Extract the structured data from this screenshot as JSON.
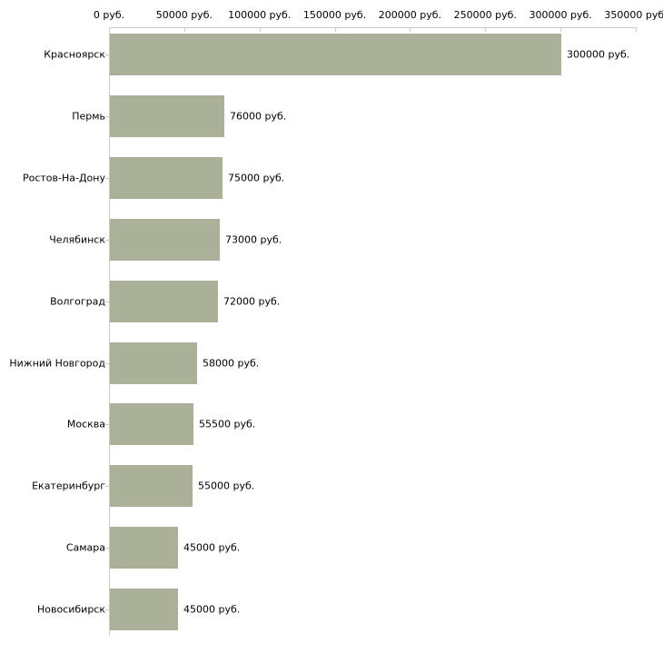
{
  "chart_data": {
    "type": "bar",
    "orientation": "horizontal",
    "title": "",
    "xlabel": "",
    "ylabel": "",
    "grid": false,
    "legend": false,
    "background": "#ffffff",
    "bar_color": "#abb198",
    "axis_color": "#c9cdbe",
    "text_color": "#000000",
    "categories": [
      "Красноярск",
      "Пермь",
      "Ростов-На-Дону",
      "Челябинск",
      "Волгоград",
      "Нижний Новгород",
      "Москва",
      "Екатеринбург",
      "Самара",
      "Новосибирск"
    ],
    "values": [
      300000,
      76000,
      75000,
      73000,
      72000,
      58000,
      55500,
      55000,
      45000,
      45000
    ],
    "value_labels": [
      "300000 руб.",
      "76000 руб.",
      "75000 руб.",
      "73000 руб.",
      "72000 руб.",
      "58000 руб.",
      "55500 руб.",
      "55000 руб.",
      "45000 руб.",
      "45000 руб."
    ],
    "x_axis": {
      "position": "top",
      "range": [
        0,
        350000
      ],
      "ticks": [
        0,
        50000,
        100000,
        150000,
        200000,
        250000,
        300000,
        350000
      ],
      "tick_labels": [
        "0 руб.",
        "50000 руб.",
        "100000 руб.",
        "150000 руб.",
        "200000 руб.",
        "250000 руб.",
        "300000 руб.",
        "350000 руб."
      ]
    }
  }
}
